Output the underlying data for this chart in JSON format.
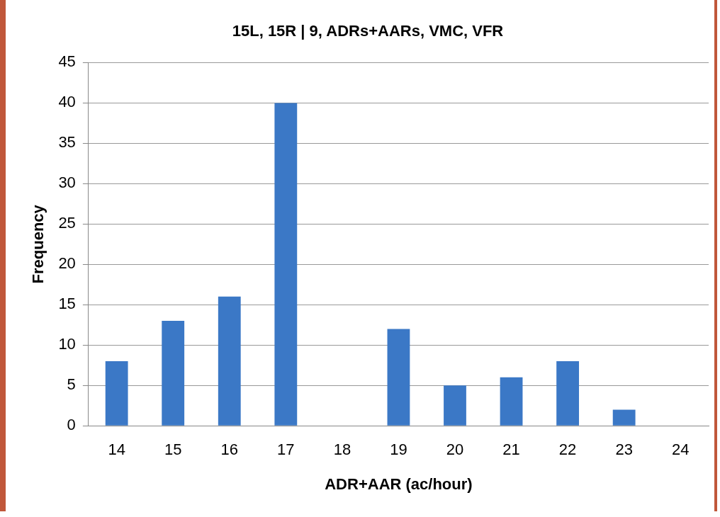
{
  "chart_data": {
    "type": "bar",
    "title": "15L, 15R | 9, ADRs+AARs, VMC, VFR",
    "xlabel": "ADR+AAR (ac/hour)",
    "ylabel": "Frequency",
    "categories": [
      "14",
      "15",
      "16",
      "17",
      "18",
      "19",
      "20",
      "21",
      "22",
      "23",
      "24"
    ],
    "values": [
      8,
      13,
      16,
      40,
      0,
      12,
      5,
      6,
      8,
      2,
      0
    ],
    "color": "#3b78c6",
    "ylim": [
      0,
      45
    ],
    "yticks": [
      0,
      5,
      10,
      15,
      20,
      25,
      30,
      35,
      40,
      45
    ],
    "grid": "y",
    "legend": false
  }
}
